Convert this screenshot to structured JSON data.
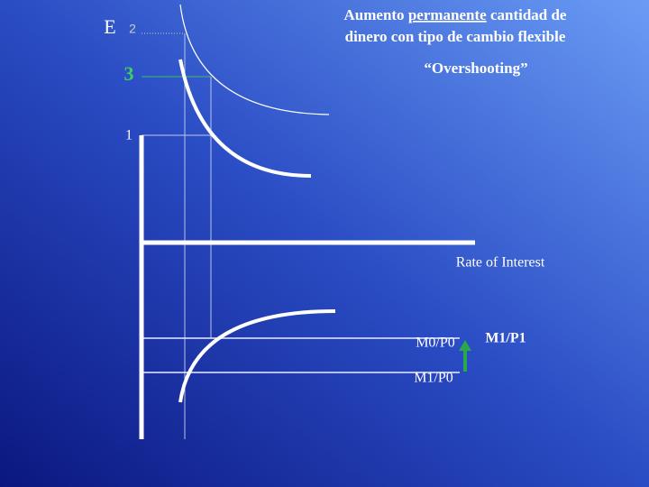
{
  "title_lines": [
    [
      "Aumento",
      "permanente",
      "cantidad de"
    ],
    [
      "dinero con tipo de cambio flexible"
    ]
  ],
  "subtitle": "“Overshooting”",
  "y_labels": {
    "e": "E",
    "two": "2",
    "three": "3",
    "one": "1"
  },
  "x_axis_label": "Rate of Interest",
  "curve_labels": {
    "m0p0": "M0/P0",
    "m1p0": "M1/P0",
    "m1p1": "M1/P1"
  }
}
